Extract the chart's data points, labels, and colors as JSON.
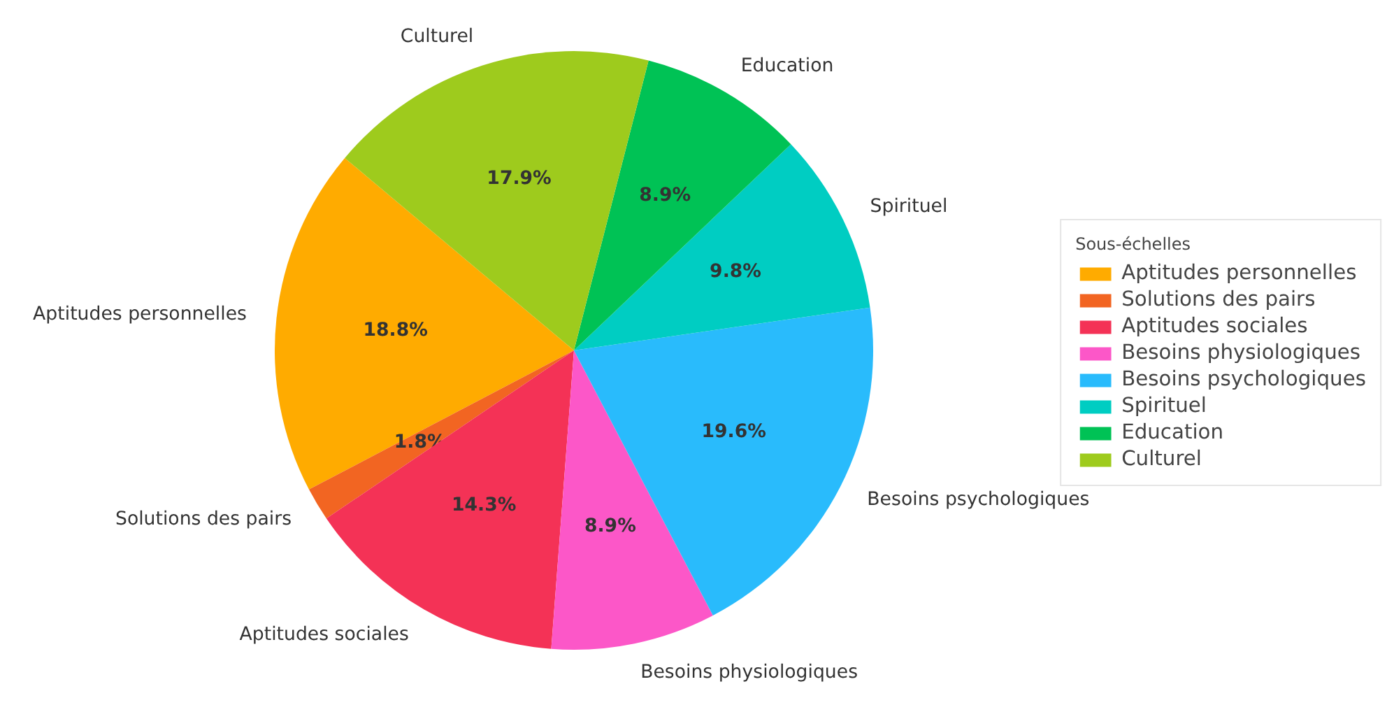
{
  "chart_data": {
    "type": "pie",
    "legend_title": "Sous-échelles",
    "legend": "right",
    "categories": [
      "Aptitudes personnelles",
      "Solutions des pairs",
      "Aptitudes sociales",
      "Besoins physiologiques",
      "Besoins psychologiques",
      "Spirituel",
      "Education",
      "Culturel"
    ],
    "values": [
      18.8,
      1.8,
      14.3,
      8.9,
      19.6,
      9.8,
      8.9,
      17.9
    ],
    "value_labels": [
      "18.8%",
      "1.8%",
      "14.3%",
      "8.9%",
      "19.6%",
      "9.8%",
      "8.9%",
      "17.9%"
    ],
    "colors": [
      "#ffab00",
      "#f26522",
      "#f43256",
      "#fc57c8",
      "#29bbfc",
      "#00cdc2",
      "#00c255",
      "#9ecb1d"
    ]
  }
}
